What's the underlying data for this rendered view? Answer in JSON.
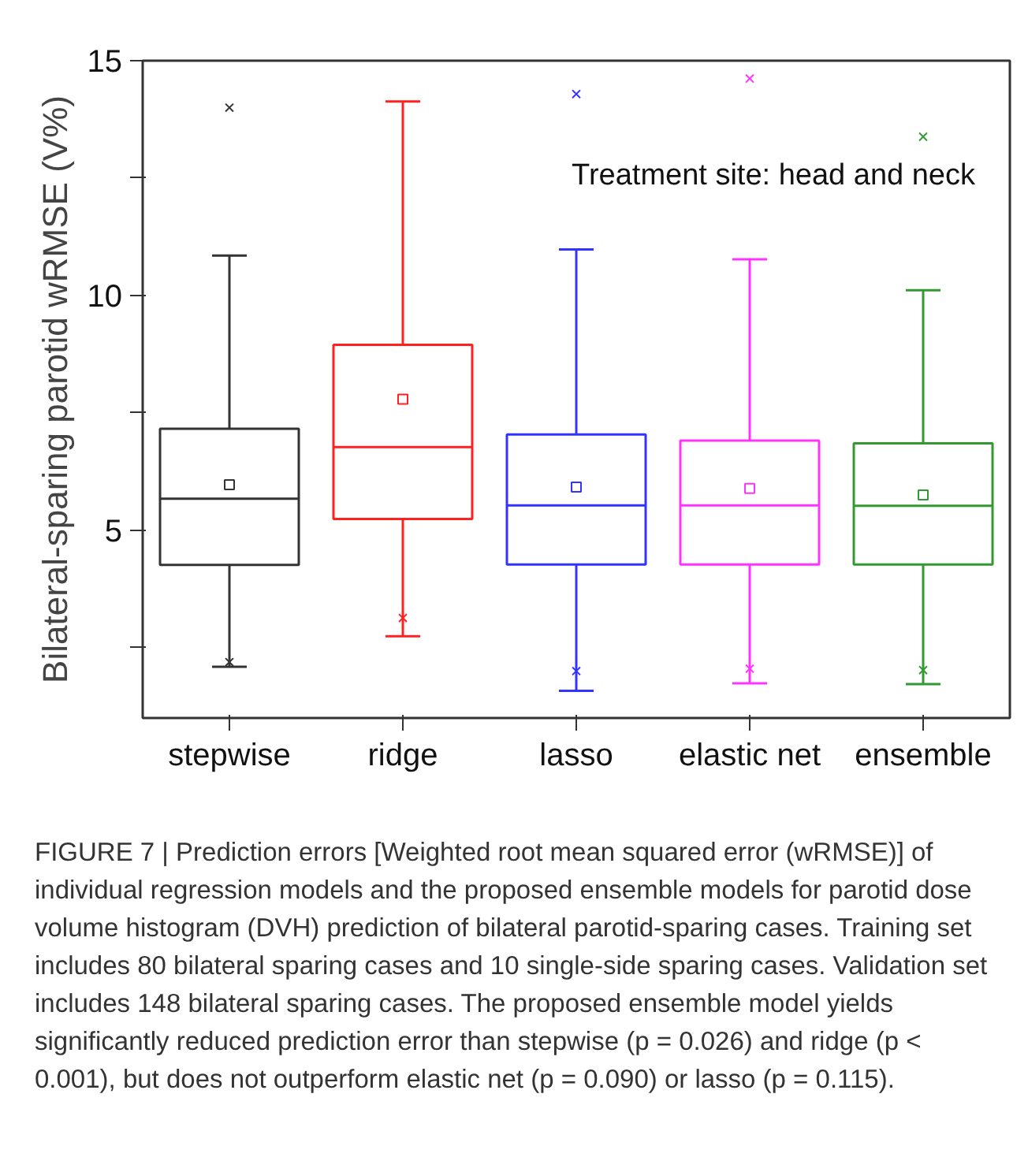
{
  "chart_data": {
    "type": "box",
    "ylabel": "Bilateral-sparing parotid wRMSE (V%)",
    "categories": [
      "stepwise",
      "ridge",
      "lasso",
      "elastic net",
      "ensemble"
    ],
    "colors": [
      "#333333",
      "#ff2020",
      "#3333ff",
      "#ff33ff",
      "#339933"
    ],
    "boxes": [
      {
        "low": 2.09,
        "q1": 4.26,
        "median": 5.67,
        "q3": 7.16,
        "high": 10.85,
        "mean": 5.97,
        "outliers": [
          14.0,
          2.19
        ]
      },
      {
        "low": 2.74,
        "q1": 5.24,
        "median": 6.77,
        "q3": 8.95,
        "high": 14.13,
        "mean": 7.79,
        "outliers": [
          3.13
        ]
      },
      {
        "low": 1.58,
        "q1": 4.27,
        "median": 5.53,
        "q3": 7.04,
        "high": 10.98,
        "mean": 5.92,
        "outliers": [
          14.29,
          2.0
        ]
      },
      {
        "low": 1.74,
        "q1": 4.27,
        "median": 5.53,
        "q3": 6.91,
        "high": 10.77,
        "mean": 5.89,
        "outliers": [
          14.62,
          2.05
        ]
      },
      {
        "low": 1.72,
        "q1": 4.27,
        "median": 5.52,
        "q3": 6.85,
        "high": 10.11,
        "mean": 5.75,
        "outliers": [
          13.38,
          2.02
        ]
      }
    ],
    "ylim": [
      1,
      15
    ],
    "yticks": [
      {
        "value": 2.5,
        "label": null
      },
      5,
      {
        "value": 7.5,
        "label": null
      },
      10,
      {
        "value": 12.5,
        "label": null
      },
      15
    ],
    "grid": false,
    "annotations": [
      "Treatment site: head and neck",
      "FIGURE 7 | Prediction errors [Weighted root mean squared error (wRMSE)] of individual regression models and the proposed ensemble models for parotid dose volume histogram (DVH) prediction of bilateral parotid-sparing cases. Training set includes 80 bilateral sparing cases and 10 single-side sparing cases. Validation set includes 148 bilateral sparing cases. The proposed ensemble model yields significantly reduced prediction error than stepwise (p = 0.026) and ridge (p < 0.001), but does not outperform elastic net (p = 0.090) or lasso (p = 0.115)."
    ]
  }
}
